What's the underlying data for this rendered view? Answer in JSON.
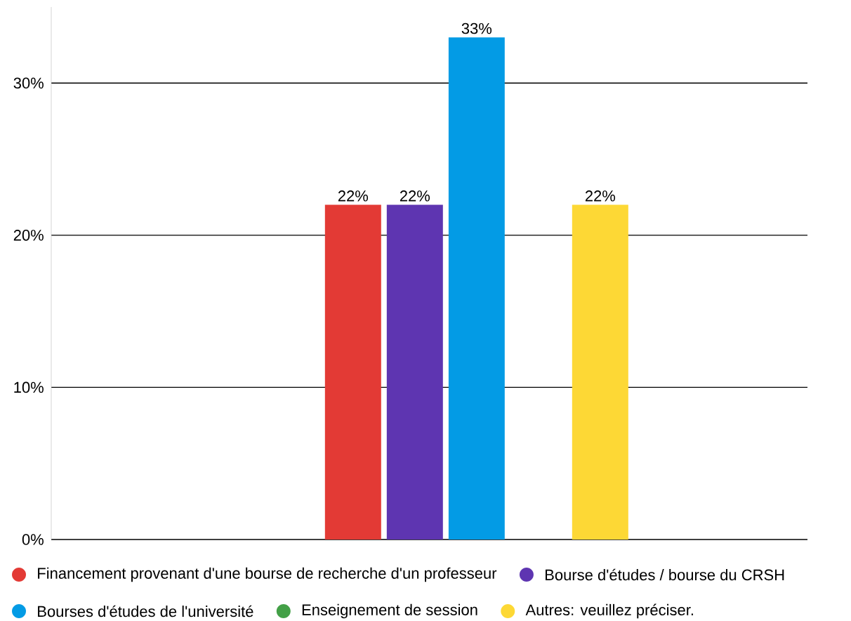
{
  "chart_data": {
    "type": "bar",
    "categories": [
      null
    ],
    "series": [
      {
        "name": "Financement provenant d'une bourse de recherche d'un professeur",
        "color": "#e33a35",
        "values": [
          22
        ],
        "value_labels": [
          "22%"
        ]
      },
      {
        "name": "Bourse d'études / bourse du CRSH",
        "color": "#5e35b1",
        "values": [
          22
        ],
        "value_labels": [
          "22%"
        ]
      },
      {
        "name": "Bourses d'études de l'université",
        "color": "#039be5",
        "values": [
          33
        ],
        "value_labels": [
          "33%"
        ]
      },
      {
        "name": "Enseignement de session",
        "color": "#43a047",
        "values": [
          0
        ],
        "value_labels": [
          null
        ]
      },
      {
        "name": "Autres: veuillez préciser.",
        "color": "#fdd835",
        "values": [
          22
        ],
        "value_labels": [
          "22%"
        ]
      }
    ],
    "ylim": [
      0,
      35
    ],
    "yticks": [
      {
        "value": 0,
        "label": "0%"
      },
      {
        "value": 10,
        "label": "10%"
      },
      {
        "value": 20,
        "label": "20%"
      },
      {
        "value": 30,
        "label": "30%"
      }
    ],
    "grid": "y",
    "legend": "bottom",
    "tick_labels": "y"
  }
}
